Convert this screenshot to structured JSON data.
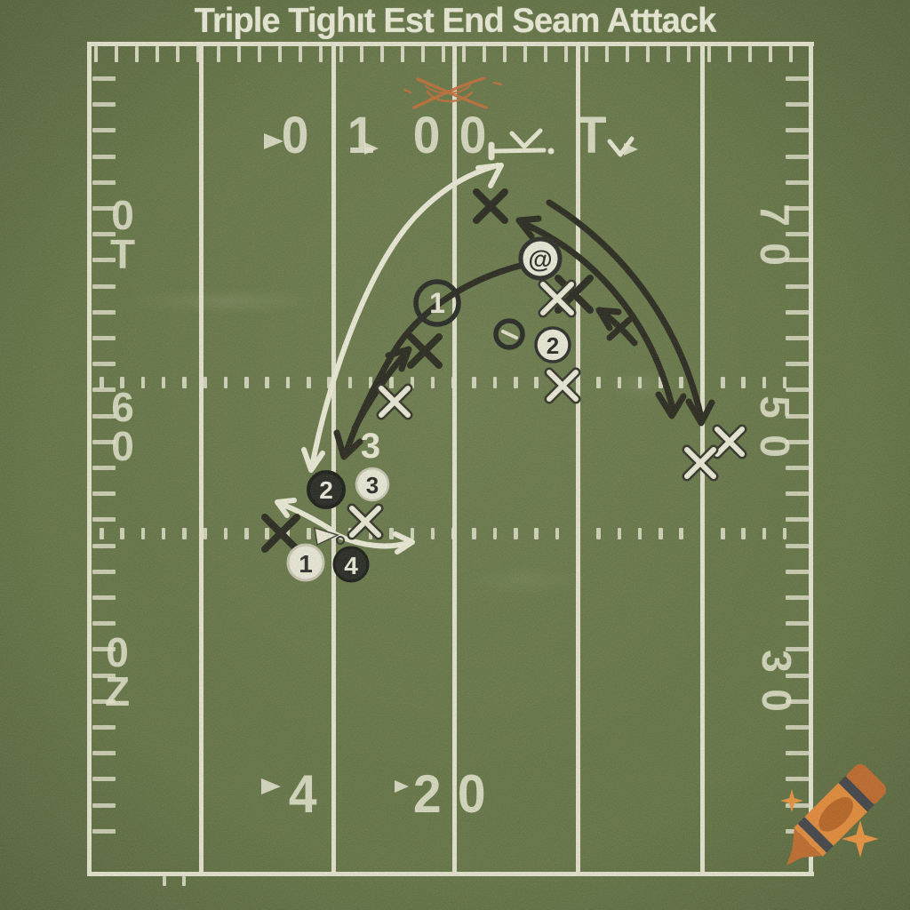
{
  "title": "Triple Tighıt Est End Seam Atttack",
  "field_numbers": {
    "top": {
      "n1": "0",
      "n2": "1",
      "n3": "0",
      "n4": "0",
      "n5": "T"
    },
    "bottom": {
      "n1": "4",
      "n2": "2",
      "n3": "0"
    },
    "left_top": {
      "c1": "0",
      "c2": "T"
    },
    "left_mid": {
      "c1": "6",
      "c2": "0"
    },
    "left_bottom": {
      "c1": "0",
      "c2": "Z"
    },
    "right_top": {
      "c1": "7",
      "c2": "0"
    },
    "right_mid": {
      "c1": "5",
      "c2": "0"
    },
    "right_bottom": {
      "c1": "3",
      "c2": "0"
    }
  },
  "players": {
    "at": "@",
    "circle1": "1",
    "white2": "2",
    "black2": "2",
    "white3": "3",
    "white1": "1",
    "black4": "4"
  },
  "route_label": "3",
  "icons": {
    "watermark": "crayon-icon",
    "sparkle": "sparkle-icon",
    "center_marker": "snap-arrow-icon"
  },
  "colors": {
    "field_green": "#5B6C3B",
    "chalk_white": "#EFEDDA",
    "ink_black": "#1A1A1A",
    "crayon_orange": "#E8832D"
  }
}
